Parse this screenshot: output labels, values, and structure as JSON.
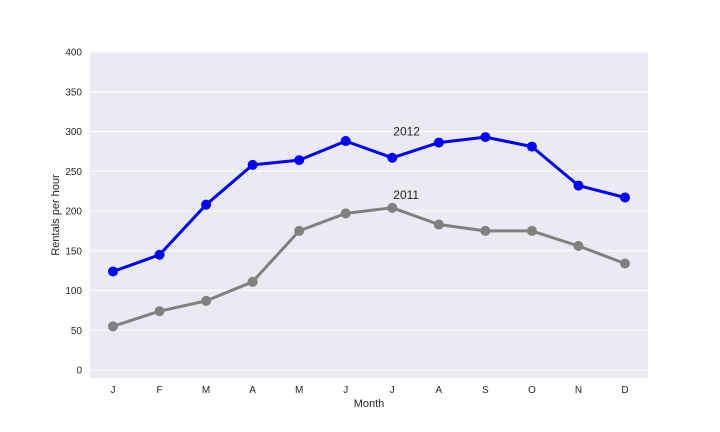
{
  "chart_data": {
    "type": "line",
    "title": "",
    "xlabel": "Month",
    "ylabel": "Rentals per hour",
    "categories": [
      "J",
      "F",
      "M",
      "A",
      "M",
      "J",
      "J",
      "A",
      "S",
      "O",
      "N",
      "D"
    ],
    "ylim": [
      -10,
      400
    ],
    "yticks": [
      0,
      50,
      100,
      150,
      200,
      250,
      300,
      350,
      400
    ],
    "grid": true,
    "legend": "none",
    "background": "#eaeaf2",
    "series": [
      {
        "name": "2012",
        "color": "#0000ff",
        "values": [
          124,
          145,
          208,
          258,
          264,
          288,
          267,
          286,
          293,
          281,
          232,
          217
        ]
      },
      {
        "name": "2011",
        "color": "#808080",
        "values": [
          55,
          74,
          87,
          111,
          175,
          197,
          204,
          183,
          175,
          175,
          156,
          134
        ]
      }
    ],
    "annotations": [
      {
        "text": "2012",
        "x_index": 6,
        "y": 300
      },
      {
        "text": "2011",
        "x_index": 6,
        "y": 220
      }
    ]
  }
}
